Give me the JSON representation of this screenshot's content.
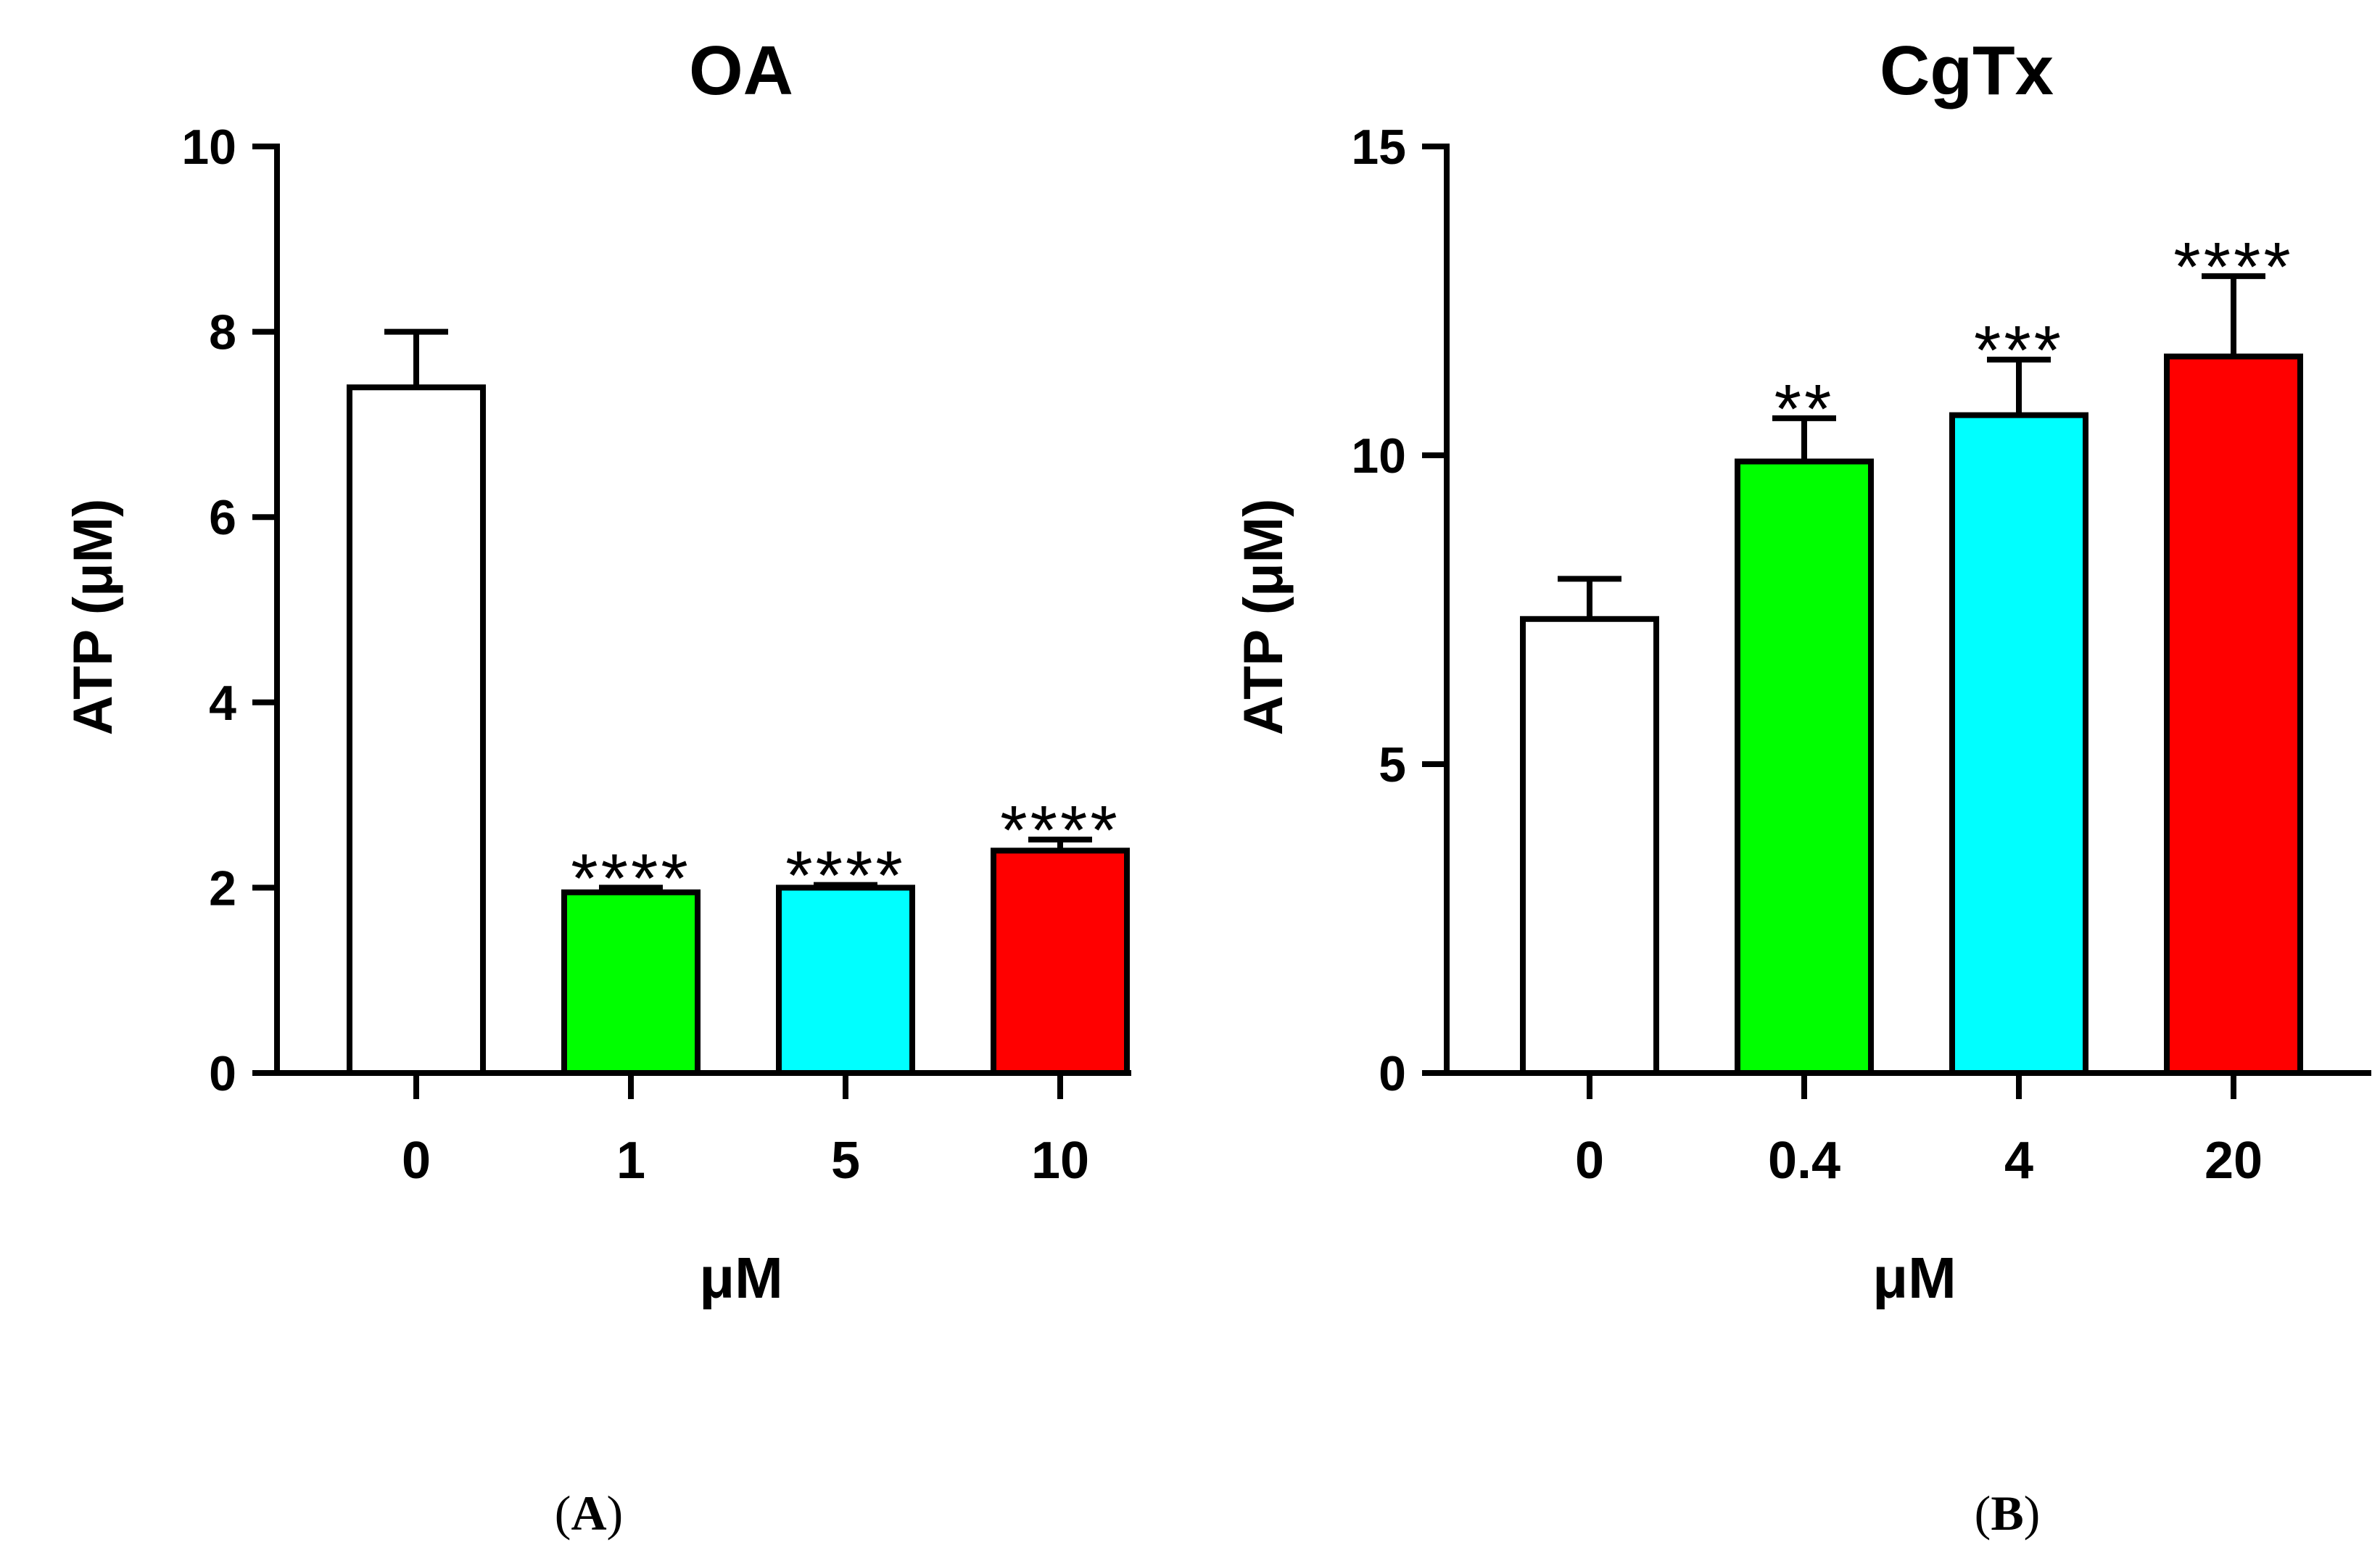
{
  "chart_data": [
    {
      "type": "bar",
      "panel_label": "A",
      "title": "OA",
      "xlabel": "μM",
      "ylabel": "ATP (μM)",
      "ylim": [
        0,
        10
      ],
      "yticks": [
        0,
        2,
        4,
        6,
        8,
        10
      ],
      "categories": [
        "0",
        "1",
        "5",
        "10"
      ],
      "values": [
        7.4,
        1.95,
        2.0,
        2.4
      ],
      "errors": [
        0.6,
        0.05,
        0.03,
        0.12
      ],
      "colors": [
        "#ffffff",
        "#00ff00",
        "#00ffff",
        "#ff0000"
      ],
      "significance": [
        "",
        "****",
        "****",
        "****"
      ]
    },
    {
      "type": "bar",
      "panel_label": "B",
      "title": "CgTx",
      "xlabel": "μM",
      "ylabel": "ATP (μM)",
      "ylim": [
        0,
        15
      ],
      "yticks": [
        0,
        5,
        10,
        15
      ],
      "categories": [
        "0",
        "0.4",
        "4",
        "20"
      ],
      "values": [
        7.35,
        9.9,
        10.65,
        11.6
      ],
      "errors": [
        0.65,
        0.7,
        0.9,
        1.3
      ],
      "colors": [
        "#ffffff",
        "#00ff00",
        "#00ffff",
        "#ff0000"
      ],
      "significance": [
        "",
        "**",
        "***",
        "****"
      ]
    }
  ]
}
